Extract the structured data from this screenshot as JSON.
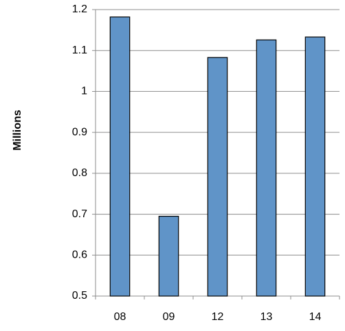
{
  "chart_data": {
    "type": "bar",
    "y_label": "Millions",
    "categories": [
      "08",
      "09",
      "12",
      "13",
      "14"
    ],
    "values": [
      1.182,
      0.695,
      1.083,
      1.126,
      1.133
    ],
    "color": "#6094c8",
    "ylim": [
      0.5,
      1.2
    ],
    "yticks": [
      0.5,
      0.6,
      0.7,
      0.8,
      0.9,
      1,
      1.1,
      1.2
    ],
    "grid": true
  }
}
